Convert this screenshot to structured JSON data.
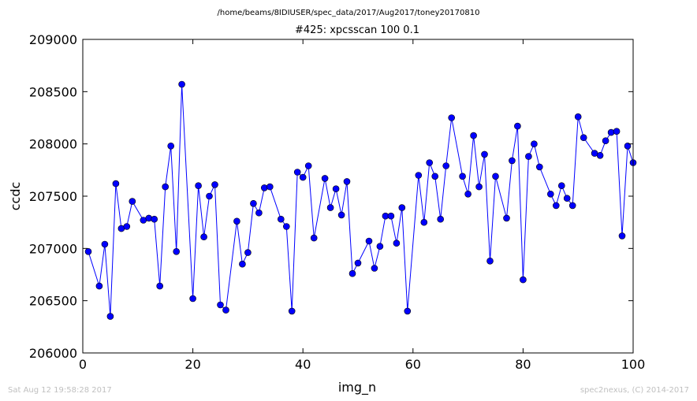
{
  "header": {
    "path": "/home/beams/8IDIUSER/spec_data/2017/Aug2017/toney20170810"
  },
  "footer": {
    "timestamp": "Sat Aug 12 19:58:28 2017",
    "credit": "spec2nexus, (C) 2014-2017"
  },
  "colors": {
    "series": "#0000ff",
    "marker_edge": "#000000",
    "footer": "#c0c0c0"
  },
  "chart_data": {
    "type": "line",
    "title": "#425: xpcsscan 100 0.1",
    "xlabel": "img_n",
    "ylabel": "ccdc",
    "xlim": [
      0,
      100
    ],
    "ylim": [
      206000,
      209000
    ],
    "grid": false,
    "xticks": [
      "0",
      "20",
      "40",
      "60",
      "80",
      "100"
    ],
    "yticks": [
      "206000",
      "206500",
      "207000",
      "207500",
      "208000",
      "208500",
      "209000"
    ],
    "series": [
      {
        "marker": "circle",
        "x": [
          1,
          3,
          4,
          5,
          6,
          7,
          8,
          9,
          11,
          12,
          13,
          14,
          15,
          16,
          17,
          18,
          20,
          21,
          22,
          23,
          24,
          25,
          26,
          28,
          29,
          30,
          31,
          32,
          33,
          34,
          36,
          37,
          38,
          39,
          40,
          41,
          42,
          44,
          45,
          46,
          47,
          48,
          49,
          50,
          52,
          53,
          54,
          55,
          56,
          57,
          58,
          59,
          61,
          62,
          63,
          64,
          65,
          66,
          67,
          69,
          70,
          71,
          72,
          73,
          74,
          75,
          77,
          78,
          79,
          80,
          81,
          82,
          83,
          85,
          86,
          87,
          88,
          89,
          90,
          91,
          93,
          94,
          95,
          96,
          97,
          98,
          99,
          100
        ],
        "y": [
          206970,
          206640,
          207040,
          206350,
          207620,
          207190,
          207210,
          207450,
          207270,
          207290,
          207280,
          206640,
          207590,
          207980,
          206970,
          208570,
          206520,
          207600,
          207110,
          207500,
          207610,
          206460,
          206410,
          207260,
          206850,
          206960,
          207430,
          207340,
          207580,
          207590,
          207280,
          207210,
          206400,
          207730,
          207680,
          207790,
          207100,
          207670,
          207390,
          207570,
          207320,
          207640,
          206760,
          206860,
          207070,
          206810,
          207020,
          207310,
          207310,
          207050,
          207390,
          206400,
          207700,
          207250,
          207820,
          207690,
          207280,
          207790,
          208250,
          207690,
          207520,
          208080,
          207590,
          207900,
          206880,
          207690,
          207290,
          207840,
          208170,
          206700,
          207880,
          208000,
          207780,
          207520,
          207410,
          207600,
          207480,
          207410,
          208260,
          208060,
          207910,
          207890,
          208030,
          208110,
          208120,
          207120,
          207980,
          207820
        ]
      }
    ]
  }
}
